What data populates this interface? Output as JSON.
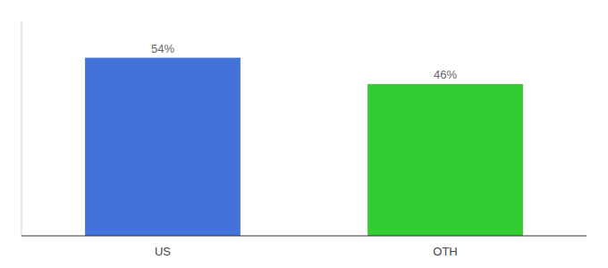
{
  "chart_data": {
    "type": "bar",
    "categories": [
      "US",
      "OTH"
    ],
    "values": [
      54,
      46
    ],
    "value_labels": [
      "54%",
      "46%"
    ],
    "colors": [
      "#4472db",
      "#33cc33"
    ],
    "ylim": [
      0,
      65
    ],
    "data_labels": true,
    "tick_labels": "x"
  }
}
